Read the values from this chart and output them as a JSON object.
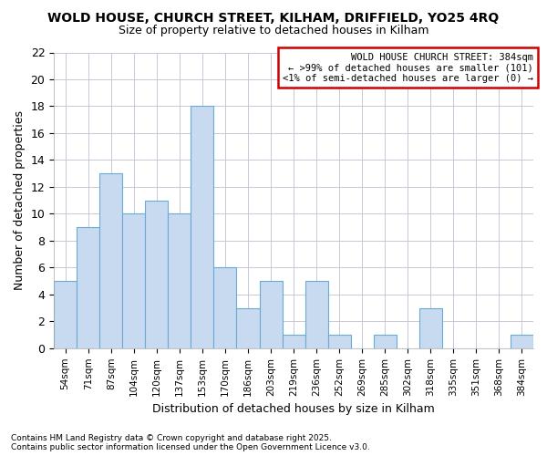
{
  "title1": "WOLD HOUSE, CHURCH STREET, KILHAM, DRIFFIELD, YO25 4RQ",
  "title2": "Size of property relative to detached houses in Kilham",
  "xlabel": "Distribution of detached houses by size in Kilham",
  "ylabel": "Number of detached properties",
  "categories": [
    "54sqm",
    "71sqm",
    "87sqm",
    "104sqm",
    "120sqm",
    "137sqm",
    "153sqm",
    "170sqm",
    "186sqm",
    "203sqm",
    "219sqm",
    "236sqm",
    "252sqm",
    "269sqm",
    "285sqm",
    "302sqm",
    "318sqm",
    "335sqm",
    "351sqm",
    "368sqm",
    "384sqm"
  ],
  "values": [
    5,
    9,
    13,
    10,
    11,
    10,
    18,
    6,
    3,
    5,
    1,
    5,
    1,
    0,
    1,
    0,
    3,
    0,
    0,
    0,
    1
  ],
  "bar_color": "#c8daf0",
  "bar_edge_color": "#6aaad4",
  "box_text_line1": "WOLD HOUSE CHURCH STREET: 384sqm",
  "box_text_line2": "← >99% of detached houses are smaller (101)",
  "box_text_line3": "<1% of semi-detached houses are larger (0) →",
  "box_color": "#ffffff",
  "box_edge_color": "#cc0000",
  "ylim": [
    0,
    22
  ],
  "yticks": [
    0,
    2,
    4,
    6,
    8,
    10,
    12,
    14,
    16,
    18,
    20,
    22
  ],
  "footer1": "Contains HM Land Registry data © Crown copyright and database right 2025.",
  "footer2": "Contains public sector information licensed under the Open Government Licence v3.0.",
  "bg_color": "#ffffff",
  "grid_color": "#c8c8d8"
}
